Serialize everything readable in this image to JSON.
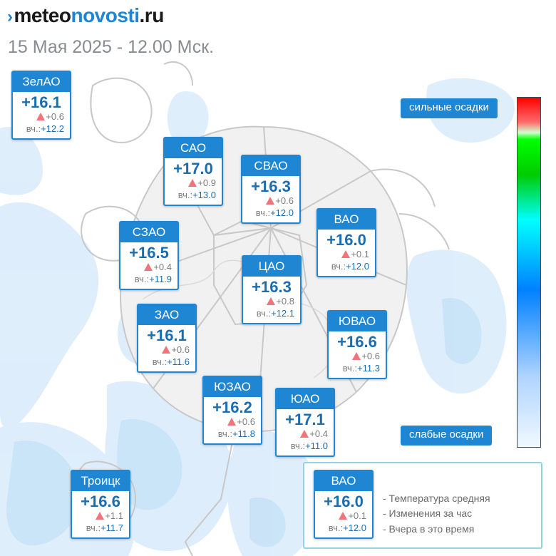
{
  "header": {
    "logo_chevron": "›",
    "logo_part1": "meteo",
    "logo_part2": "novosti",
    "logo_part3": ".ru",
    "subtitle": "15 Мая 2025 - 12.00 Мск."
  },
  "colors": {
    "accent": "#1e86d2",
    "temp_text": "#1a6db0",
    "rise_triangle": "#f0747a",
    "precip_light": "#c9e3f7",
    "map_boundary": "#c8c8c8"
  },
  "districts": [
    {
      "name": "ЗелАО",
      "temp": "+16.1",
      "change": "+0.6",
      "yday_label": "вч.:",
      "yday": "+12.2"
    },
    {
      "name": "САО",
      "temp": "+17.0",
      "change": "+0.9",
      "yday_label": "вч.:",
      "yday": "+13.0"
    },
    {
      "name": "СВАО",
      "temp": "+16.3",
      "change": "+0.6",
      "yday_label": "вч.:",
      "yday": "+12.0"
    },
    {
      "name": "ВАО",
      "temp": "+16.0",
      "change": "+0.1",
      "yday_label": "вч.:",
      "yday": "+12.0"
    },
    {
      "name": "СЗАО",
      "temp": "+16.5",
      "change": "+0.4",
      "yday_label": "вч.:",
      "yday": "+11.9"
    },
    {
      "name": "ЦАО",
      "temp": "+16.3",
      "change": "+0.8",
      "yday_label": "вч.:",
      "yday": "+12.1"
    },
    {
      "name": "ЗАО",
      "temp": "+16.1",
      "change": "+0.6",
      "yday_label": "вч.:",
      "yday": "+11.6"
    },
    {
      "name": "ЮВАО",
      "temp": "+16.6",
      "change": "+0.6",
      "yday_label": "вч.:",
      "yday": "+11.3"
    },
    {
      "name": "ЮЗАО",
      "temp": "+16.2",
      "change": "+0.6",
      "yday_label": "вч.:",
      "yday": "+11.8"
    },
    {
      "name": "ЮАО",
      "temp": "+17.1",
      "change": "+0.4",
      "yday_label": "вч.:",
      "yday": "+11.0"
    },
    {
      "name": "Троицк",
      "temp": "+16.6",
      "change": "+1.1",
      "yday_label": "вч.:",
      "yday": "+11.7"
    }
  ],
  "scale": {
    "top_label": "сильные осадки",
    "bottom_label": "слабые осадки"
  },
  "legend": {
    "sample": {
      "name": "ВАО",
      "temp": "+16.0",
      "change": "+0.1",
      "yday_label": "вч.:",
      "yday": "+12.0"
    },
    "items": [
      "- Температура средняя",
      "- Изменения за час",
      "- Вчера в это время"
    ]
  }
}
